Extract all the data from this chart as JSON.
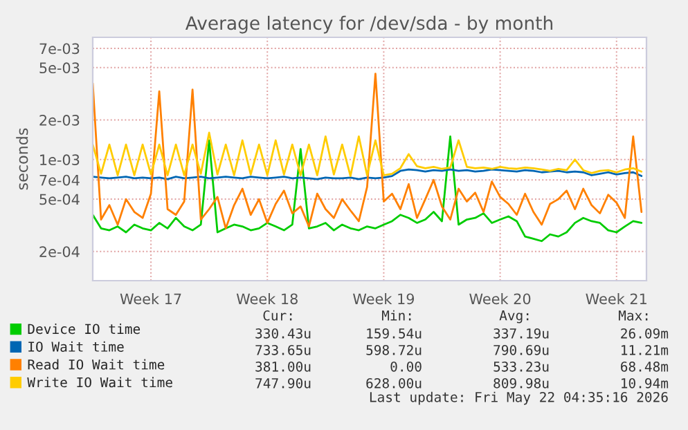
{
  "chart_data": {
    "type": "line",
    "title": "Average latency for /dev/sda - by month",
    "ylabel": "seconds",
    "categories": [
      null,
      null,
      null,
      null,
      null,
      null,
      null,
      "Week 17",
      null,
      null,
      null,
      null,
      null,
      null,
      null,
      null,
      null,
      null,
      null,
      null,
      null,
      "Week 18",
      null,
      null,
      null,
      null,
      null,
      null,
      null,
      null,
      null,
      null,
      null,
      null,
      null,
      "Week 19",
      null,
      null,
      null,
      null,
      null,
      null,
      null,
      null,
      null,
      null,
      null,
      null,
      null,
      "Week 20",
      null,
      null,
      null,
      null,
      null,
      null,
      null,
      null,
      null,
      null,
      null,
      null,
      null,
      "Week 21",
      null,
      null,
      null
    ],
    "series": [
      {
        "name": "Device IO time",
        "color": "#00cc00",
        "values": [
          0.00038,
          0.0003,
          0.00029,
          0.00031,
          0.00028,
          0.00032,
          0.0003,
          0.00029,
          0.00033,
          0.0003,
          0.00036,
          0.00031,
          0.00029,
          0.00032,
          0.0014,
          0.00028,
          0.0003,
          0.00032,
          0.00031,
          0.00029,
          0.0003,
          0.00033,
          0.00031,
          0.00029,
          0.00032,
          0.0012,
          0.0003,
          0.00031,
          0.00033,
          0.00029,
          0.00032,
          0.0003,
          0.00029,
          0.00031,
          0.0003,
          0.00032,
          0.00034,
          0.00038,
          0.00036,
          0.00033,
          0.00035,
          0.0004,
          0.00034,
          0.0015,
          0.00032,
          0.00035,
          0.00036,
          0.00039,
          0.00033,
          0.00035,
          0.00037,
          0.00034,
          0.00026,
          0.00025,
          0.00024,
          0.00027,
          0.00026,
          0.00028,
          0.00033,
          0.00036,
          0.00034,
          0.00033,
          0.00029,
          0.00028,
          0.00031,
          0.00034,
          0.00033
        ]
      },
      {
        "name": "IO Wait time",
        "color": "#0066b3",
        "values": [
          0.00074,
          0.00073,
          0.00072,
          0.00073,
          0.00074,
          0.00072,
          0.00073,
          0.00072,
          0.00073,
          0.00071,
          0.00074,
          0.00072,
          0.00073,
          0.00074,
          0.00072,
          0.00073,
          0.00074,
          0.00073,
          0.00072,
          0.00074,
          0.00073,
          0.00072,
          0.00073,
          0.00074,
          0.00072,
          0.00073,
          0.00072,
          0.00071,
          0.00073,
          0.00072,
          0.00072,
          0.00073,
          0.00071,
          0.00073,
          0.00072,
          0.00073,
          0.00075,
          0.00082,
          0.00084,
          0.00083,
          0.00081,
          0.00083,
          0.00082,
          0.00084,
          0.00082,
          0.00083,
          0.00081,
          0.00082,
          0.00084,
          0.00083,
          0.00082,
          0.00081,
          0.00083,
          0.00082,
          0.0008,
          0.00081,
          0.00082,
          0.0008,
          0.00081,
          0.0008,
          0.00076,
          0.00078,
          0.0008,
          0.00077,
          0.00079,
          0.0008,
          0.00075
        ]
      },
      {
        "name": "Read IO Wait time",
        "color": "#ff8000",
        "values": [
          0.0038,
          0.00035,
          0.00045,
          0.00032,
          0.0005,
          0.0004,
          0.00036,
          0.00055,
          0.0033,
          0.00042,
          0.00038,
          0.00048,
          0.0034,
          0.00035,
          0.00042,
          0.00052,
          0.0003,
          0.00045,
          0.0006,
          0.00038,
          0.0005,
          0.00033,
          0.00046,
          0.00058,
          0.00039,
          0.00044,
          0.00031,
          0.00055,
          0.00042,
          0.00036,
          0.0005,
          0.00041,
          0.00034,
          0.00062,
          0.0045,
          0.00048,
          0.00055,
          0.00042,
          0.00065,
          0.00036,
          0.0005,
          0.0007,
          0.00044,
          0.00035,
          0.0006,
          0.00048,
          0.00056,
          0.0004,
          0.00068,
          0.00052,
          0.00046,
          0.00038,
          0.00055,
          0.0004,
          0.00032,
          0.00046,
          0.0005,
          0.00058,
          0.00042,
          0.0006,
          0.00045,
          0.00039,
          0.00054,
          0.00047,
          0.00036,
          0.0015,
          0.0004
        ]
      },
      {
        "name": "Write IO Wait time",
        "color": "#ffcc00",
        "values": [
          0.0013,
          0.00078,
          0.0013,
          0.00076,
          0.0013,
          0.00076,
          0.0013,
          0.00077,
          0.0013,
          0.00076,
          0.0013,
          0.00076,
          0.0013,
          0.00078,
          0.0016,
          0.00077,
          0.0013,
          0.00076,
          0.0014,
          0.00077,
          0.0013,
          0.00076,
          0.0014,
          0.00077,
          0.0013,
          0.00076,
          0.0013,
          0.00076,
          0.0015,
          0.00077,
          0.0013,
          0.00075,
          0.0015,
          0.00076,
          0.0014,
          0.00076,
          0.00078,
          0.00086,
          0.0011,
          0.00089,
          0.00086,
          0.00088,
          0.00085,
          0.00087,
          0.0014,
          0.00088,
          0.00086,
          0.00087,
          0.00085,
          0.00088,
          0.00086,
          0.00085,
          0.00087,
          0.00086,
          0.00084,
          0.00082,
          0.00085,
          0.00083,
          0.001,
          0.00083,
          0.00079,
          0.00082,
          0.00083,
          0.0008,
          0.00084,
          0.00086,
          0.00081
        ]
      }
    ],
    "log": true,
    "ylim": [
      0.00012,
      0.0085
    ],
    "yticks": [
      {
        "value": 0.0002,
        "label": "2e-04"
      },
      {
        "value": 0.0005,
        "label": "5e-04"
      },
      {
        "value": 0.0007,
        "label": "7e-04"
      },
      {
        "value": 0.001,
        "label": "1e-03"
      },
      {
        "value": 0.002,
        "label": "2e-03"
      },
      {
        "value": 0.005,
        "label": "5e-03"
      },
      {
        "value": 0.007,
        "label": "7e-03"
      }
    ],
    "grid": true,
    "legend": "bottom",
    "annotations": [
      "Cur:",
      "Min:",
      "Avg:",
      "Max:",
      "330.43u",
      "159.54u",
      "337.19u",
      "26.09m",
      "733.65u",
      "598.72u",
      "790.69u",
      "11.21m",
      "381.00u",
      "0.00",
      "533.23u",
      "68.48m",
      "747.90u",
      "628.00u",
      "809.98u",
      "10.94m",
      "Last update: Fri May 22 04:35:16 2026"
    ]
  }
}
